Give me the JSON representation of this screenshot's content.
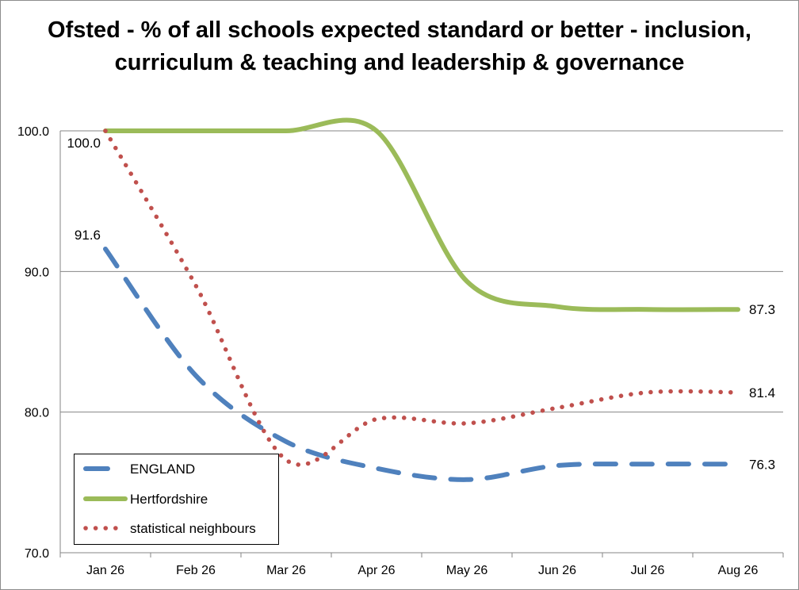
{
  "chart_data": {
    "type": "line",
    "title": "Ofsted - % of all schools expected standard or better - inclusion, curriculum & teaching and leadership & governance",
    "categories": [
      "Jan 26",
      "Feb 26",
      "Mar 26",
      "Apr 26",
      "May 26",
      "Jun 26",
      "Jul 26",
      "Aug 26"
    ],
    "ylim": [
      70,
      100
    ],
    "yticks": [
      "70.0",
      "80.0",
      "90.0",
      "100.0"
    ],
    "grid": "horizontal",
    "legend_position": "bottom-left",
    "series": [
      {
        "name": "ENGLAND",
        "style": "dashed",
        "color": "#4f81bd",
        "values": [
          91.6,
          82.6,
          77.9,
          76.0,
          75.2,
          76.2,
          76.3,
          76.3
        ],
        "label_first": "91.6",
        "label_last": "76.3"
      },
      {
        "name": "Hertfordshire",
        "style": "solid",
        "color": "#9bbb59",
        "values": [
          100.0,
          100.0,
          100.0,
          100.0,
          89.3,
          87.5,
          87.3,
          87.3
        ],
        "label_first": "",
        "label_last": "87.3"
      },
      {
        "name": "statistical neighbours",
        "style": "dotted",
        "color": "#c0504d",
        "values": [
          100.0,
          89.0,
          76.6,
          79.5,
          79.2,
          80.3,
          81.4,
          81.4
        ],
        "label_first": "100.0",
        "label_last": "81.4"
      }
    ]
  }
}
